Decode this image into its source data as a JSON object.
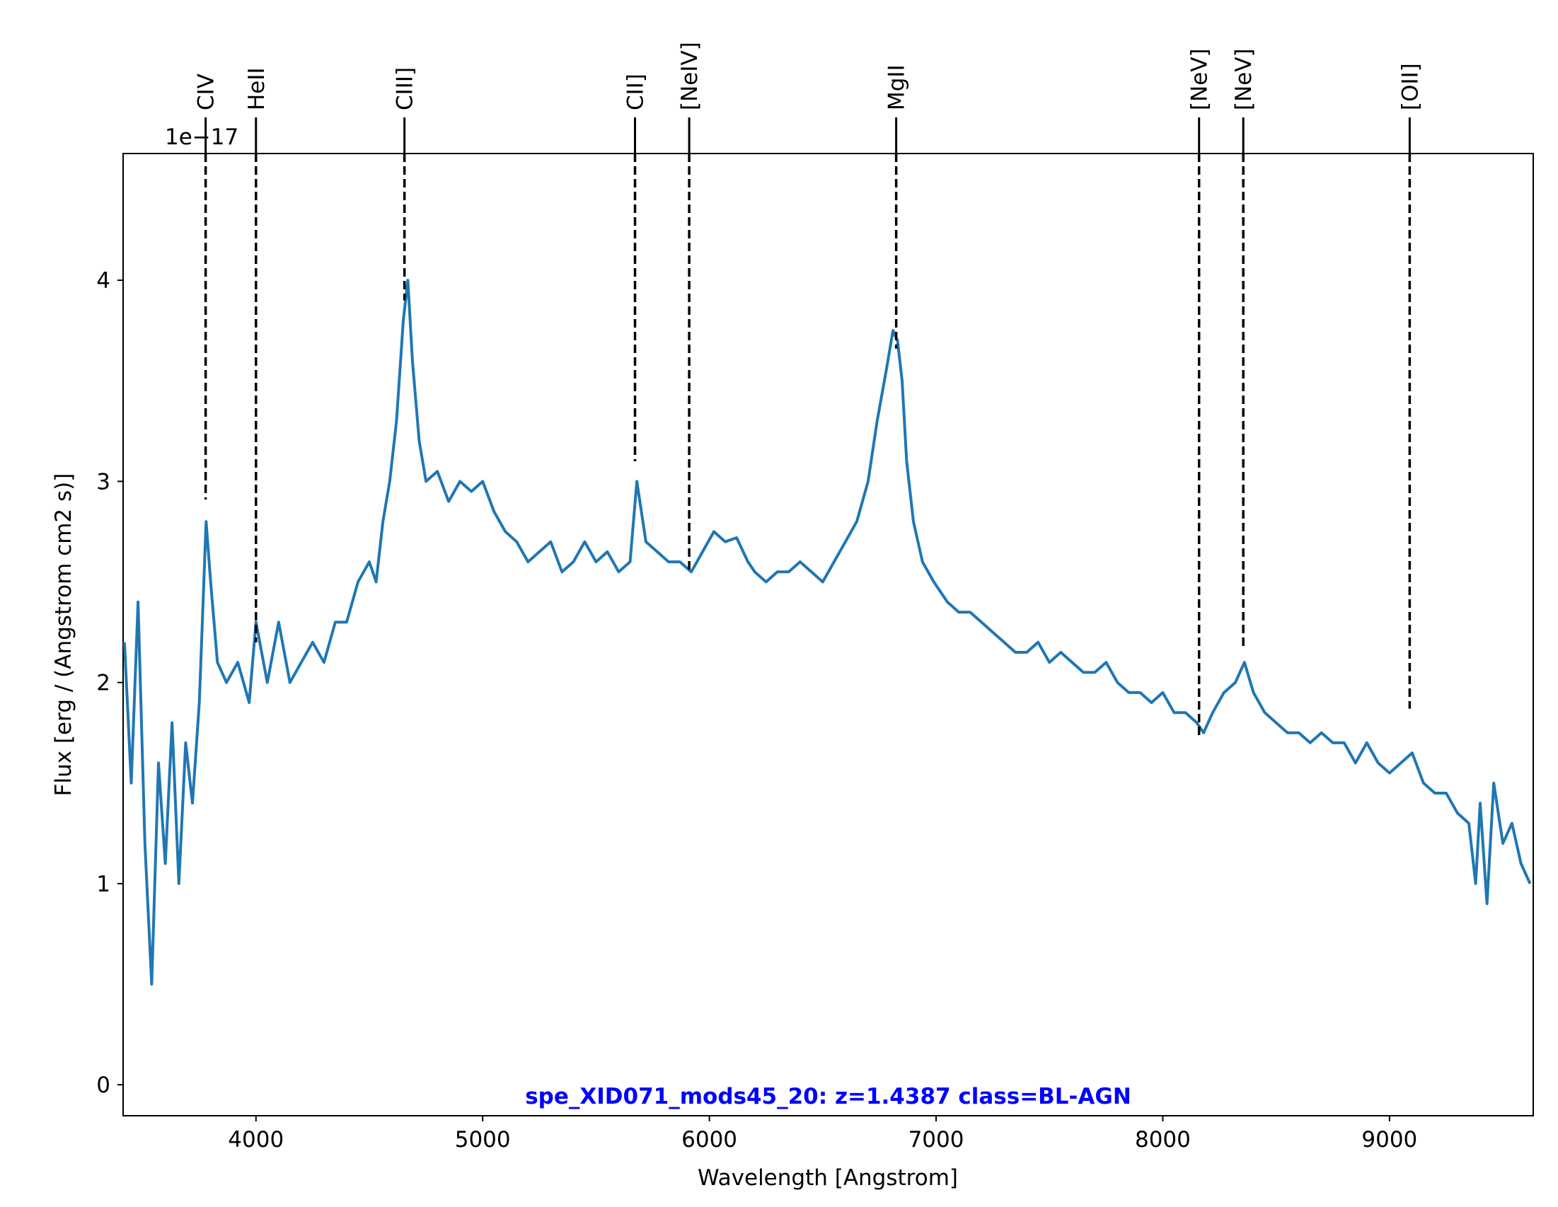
{
  "chart_data": {
    "type": "line",
    "title": "spe_XID071_mods45_20: z=1.4387 class=BL-AGN",
    "title_color": "#0000ff",
    "x_label": "Wavelength [Angstrom]",
    "y_label": "Flux [erg / (Angstrom cm2 s)]",
    "y_offset_label": "1e−17",
    "xlim": [
      3414,
      9634
    ],
    "ylim": [
      -0.154,
      4.63
    ],
    "xticks": [
      4000,
      5000,
      6000,
      7000,
      8000,
      9000
    ],
    "yticks": [
      0,
      1,
      2,
      3,
      4
    ],
    "grid": false,
    "x": [
      3420,
      3450,
      3480,
      3510,
      3540,
      3570,
      3600,
      3630,
      3660,
      3690,
      3720,
      3750,
      3780,
      3800,
      3830,
      3870,
      3920,
      3970,
      4000,
      4050,
      4100,
      4150,
      4200,
      4250,
      4300,
      4350,
      4400,
      4450,
      4500,
      4530,
      4560,
      4590,
      4620,
      4650,
      4670,
      4690,
      4720,
      4750,
      4800,
      4850,
      4900,
      4950,
      5000,
      5050,
      5100,
      5150,
      5200,
      5250,
      5300,
      5350,
      5400,
      5450,
      5500,
      5550,
      5600,
      5650,
      5680,
      5720,
      5770,
      5820,
      5870,
      5920,
      5970,
      6020,
      6070,
      6120,
      6170,
      6200,
      6250,
      6300,
      6350,
      6400,
      6450,
      6500,
      6550,
      6600,
      6650,
      6700,
      6740,
      6780,
      6810,
      6830,
      6850,
      6870,
      6900,
      6940,
      6990,
      7050,
      7100,
      7150,
      7200,
      7250,
      7300,
      7350,
      7400,
      7450,
      7500,
      7550,
      7600,
      7650,
      7700,
      7750,
      7800,
      7850,
      7900,
      7950,
      8000,
      8050,
      8100,
      8150,
      8180,
      8220,
      8270,
      8320,
      8360,
      8400,
      8450,
      8500,
      8550,
      8600,
      8650,
      8700,
      8750,
      8800,
      8850,
      8900,
      8950,
      9000,
      9050,
      9100,
      9150,
      9200,
      9250,
      9300,
      9350,
      9380,
      9400,
      9430,
      9460,
      9500,
      9540,
      9580,
      9620
    ],
    "series": [
      {
        "name": "flux",
        "color": "#1f77b4",
        "values": [
          2.2,
          1.5,
          2.4,
          1.2,
          0.5,
          1.6,
          1.1,
          1.8,
          1.0,
          1.7,
          1.4,
          1.9,
          2.8,
          2.5,
          2.1,
          2.0,
          2.1,
          1.9,
          2.3,
          2.0,
          2.3,
          2.0,
          2.1,
          2.2,
          2.1,
          2.3,
          2.3,
          2.5,
          2.6,
          2.5,
          2.8,
          3.0,
          3.3,
          3.8,
          4.0,
          3.6,
          3.2,
          3.0,
          3.05,
          2.9,
          3.0,
          2.95,
          3.0,
          2.85,
          2.75,
          2.7,
          2.6,
          2.65,
          2.7,
          2.55,
          2.6,
          2.7,
          2.6,
          2.65,
          2.55,
          2.6,
          3.0,
          2.7,
          2.65,
          2.6,
          2.6,
          2.55,
          2.65,
          2.75,
          2.7,
          2.72,
          2.6,
          2.55,
          2.5,
          2.55,
          2.55,
          2.6,
          2.55,
          2.5,
          2.6,
          2.7,
          2.8,
          3.0,
          3.3,
          3.55,
          3.75,
          3.7,
          3.5,
          3.1,
          2.8,
          2.6,
          2.5,
          2.4,
          2.35,
          2.35,
          2.3,
          2.25,
          2.2,
          2.15,
          2.15,
          2.2,
          2.1,
          2.15,
          2.1,
          2.05,
          2.05,
          2.1,
          2.0,
          1.95,
          1.95,
          1.9,
          1.95,
          1.85,
          1.85,
          1.8,
          1.75,
          1.85,
          1.95,
          2.0,
          2.1,
          1.95,
          1.85,
          1.8,
          1.75,
          1.75,
          1.7,
          1.75,
          1.7,
          1.7,
          1.6,
          1.7,
          1.6,
          1.55,
          1.6,
          1.65,
          1.5,
          1.45,
          1.45,
          1.35,
          1.3,
          1.0,
          1.4,
          0.9,
          1.5,
          1.2,
          1.3,
          1.1,
          1.0
        ]
      }
    ],
    "emission_lines": [
      {
        "label": "CIV",
        "wavelength": 3778,
        "flux": 2.91
      },
      {
        "label": "HeII",
        "wavelength": 4000,
        "flux": 2.2
      },
      {
        "label": "CIII]",
        "wavelength": 4655,
        "flux": 3.9
      },
      {
        "label": "CII]",
        "wavelength": 5672,
        "flux": 3.1
      },
      {
        "label": "[NeIV]",
        "wavelength": 5911,
        "flux": 2.56
      },
      {
        "label": "MgII",
        "wavelength": 6824,
        "flux": 3.66
      },
      {
        "label": "[NeV]",
        "wavelength": 8160,
        "flux": 1.72
      },
      {
        "label": "[NeV]",
        "wavelength": 8355,
        "flux": 2.17
      },
      {
        "label": "[OII]",
        "wavelength": 9089,
        "flux": 1.87
      }
    ]
  }
}
